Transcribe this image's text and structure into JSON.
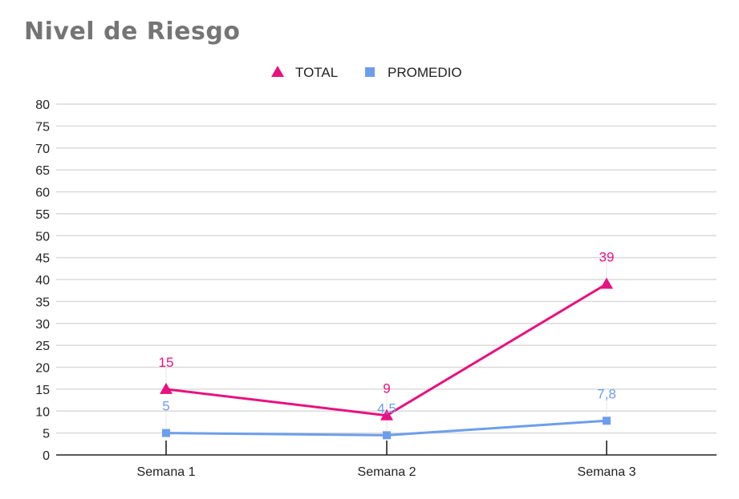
{
  "chart_data": {
    "type": "line",
    "title": "Nivel de Riesgo",
    "categories": [
      "Semana 1",
      "Semana 2",
      "Semana 3"
    ],
    "series": [
      {
        "name": "TOTAL",
        "values": [
          15,
          9,
          39
        ],
        "labels": [
          "15",
          "9",
          "39"
        ],
        "color": "#e8117f",
        "marker": "triangle"
      },
      {
        "name": "PROMEDIO",
        "values": [
          5,
          4.5,
          7.8
        ],
        "labels": [
          "5",
          "4,5",
          "7,8"
        ],
        "color": "#6d9eeb",
        "marker": "square"
      }
    ],
    "ylim": [
      0,
      80
    ],
    "yticks": [
      "0",
      "5",
      "10",
      "15",
      "20",
      "25",
      "30",
      "35",
      "40",
      "45",
      "50",
      "55",
      "60",
      "65",
      "70",
      "75",
      "80"
    ],
    "xlabel": "",
    "ylabel": "",
    "grid": true,
    "legend_position": "top-center"
  }
}
